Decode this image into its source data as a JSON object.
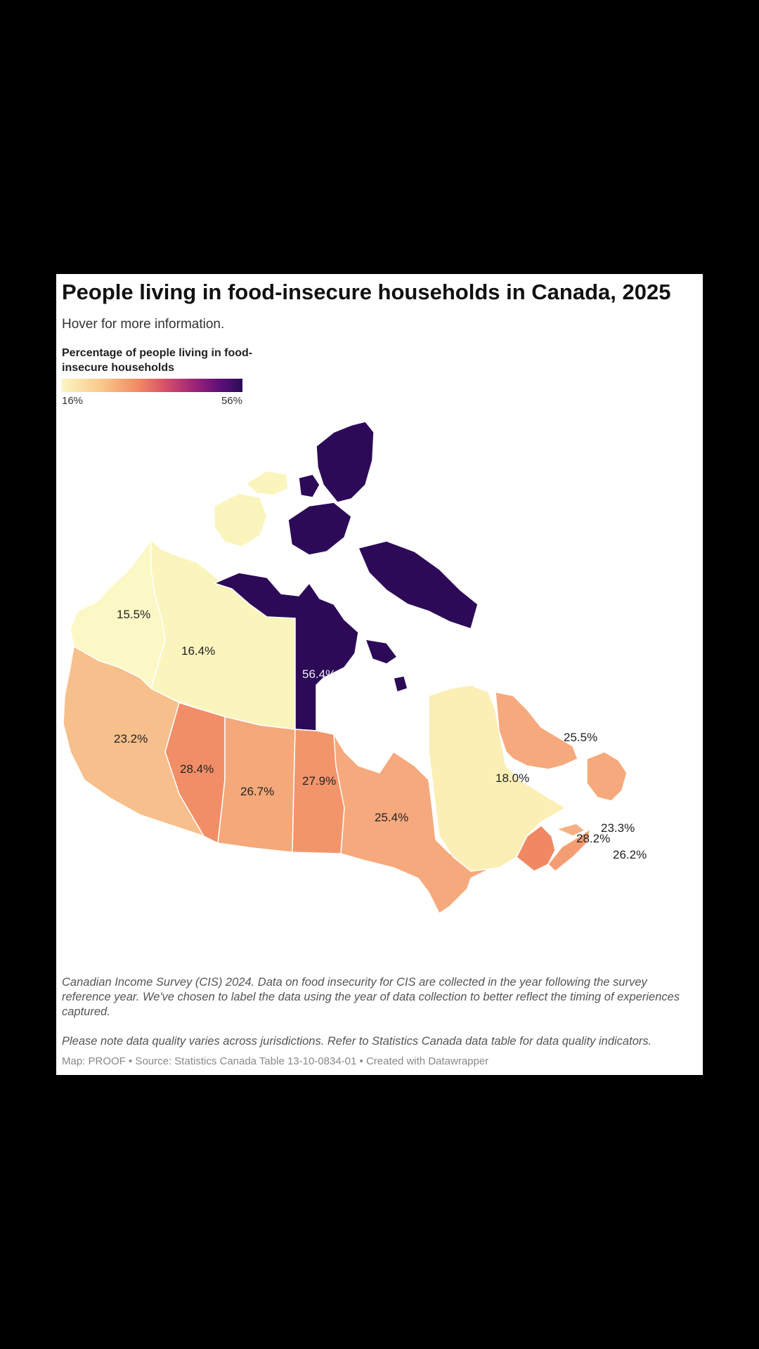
{
  "header": {
    "title": "People living in food-insecure households in Canada, 2025",
    "subtitle": "Hover for more information."
  },
  "legend": {
    "title": "Percentage of people living in food-insecure households",
    "min_label": "16%",
    "max_label": "56%",
    "color_start": "#fbf5c3",
    "color_end": "#2b0b57"
  },
  "regions": {
    "yukon": "15.5%",
    "northwest_territories": "16.4%",
    "nunavut": "56.4%",
    "british_columbia": "23.2%",
    "alberta": "28.4%",
    "saskatchewan": "26.7%",
    "manitoba": "27.9%",
    "ontario": "25.4%",
    "quebec": "18.0%",
    "newfoundland_labrador": "25.5%",
    "new_brunswick": "28.2%",
    "prince_edward_island": "23.3%",
    "nova_scotia": "26.2%"
  },
  "notes": {
    "note1": "Canadian Income Survey (CIS) 2024. Data on food insecurity for CIS are collected in the year following the survey reference year. We've chosen to label the data using the year of data collection to better reflect the timing of experiences captured.",
    "note2": "Please note data quality varies across jurisdictions. Refer to Statistics Canada data table for data quality indicators.",
    "credit": "Map: PROOF • Source: Statistics Canada Table 13-10-0834-01 • Created with Datawrapper"
  }
}
